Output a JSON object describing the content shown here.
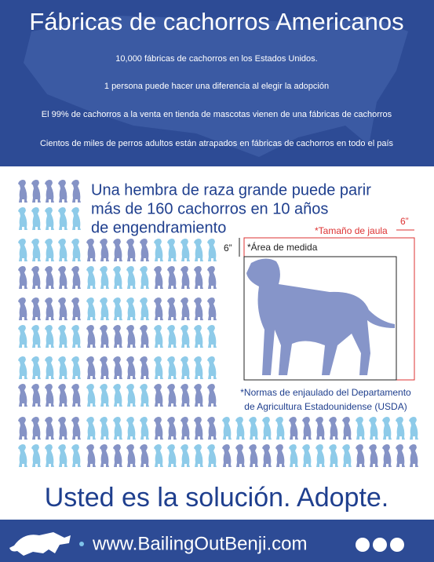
{
  "header": {
    "title": "Fábricas de cachorros Americanos",
    "facts": [
      "10,000 fábricas de cachorros en los Estados Unidos.",
      "1 persona puede hacer una diferencia al elegir la adopción",
      "El 99% de cachorros a la venta en tienda de mascotas vienen de una fábricas de cachorros",
      "Cientos de miles de perros adultos están atrapados en fábricas de cachorros en todo el país"
    ]
  },
  "heading": [
    "Una hembra de raza grande puede parir",
    "más de 160 cachorros en 10 años",
    "de engendramiento"
  ],
  "cage": {
    "cage_label": "*Tamaño de jaula",
    "dim_top": "6”",
    "dim_left": "6”",
    "area_label": "*Área de medida"
  },
  "footnote": [
    "*Normas de enjaulado del Departamento",
    "de Agricultura Estadounidense (USDA)"
  ],
  "slogan": "Usted es la solución. Adopte.",
  "footer": {
    "url": "www.BailingOutBenji.com"
  }
}
